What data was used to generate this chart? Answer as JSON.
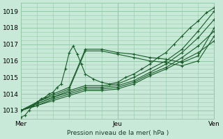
{
  "title": "",
  "xlabel": "Pression niveau de la mer( hPa )",
  "bg_color": "#c8e8d8",
  "grid_color": "#96c8aa",
  "line_color": "#1a5c2a",
  "xlim": [
    0,
    48
  ],
  "ylim": [
    1012.5,
    1019.5
  ],
  "yticks": [
    1013,
    1014,
    1015,
    1016,
    1017,
    1018,
    1019
  ],
  "xtick_labels": [
    "Mer",
    "Jeu",
    "Ven"
  ],
  "xtick_positions": [
    0,
    24,
    48
  ],
  "series": [
    {
      "x": [
        0,
        1,
        2,
        3,
        4,
        5,
        6,
        7,
        8,
        9,
        10,
        11,
        12,
        13,
        14,
        15,
        16,
        18,
        20,
        22,
        24,
        26,
        28,
        30,
        32,
        34,
        36,
        38,
        40,
        42,
        44,
        46,
        48
      ],
      "y": [
        1012.6,
        1012.7,
        1013.0,
        1013.3,
        1013.5,
        1013.7,
        1013.8,
        1014.0,
        1014.1,
        1014.4,
        1014.6,
        1015.5,
        1016.5,
        1016.9,
        1016.4,
        1015.8,
        1015.2,
        1014.9,
        1014.7,
        1014.6,
        1014.7,
        1015.0,
        1015.2,
        1015.5,
        1015.8,
        1016.2,
        1016.5,
        1017.0,
        1017.5,
        1018.0,
        1018.4,
        1018.9,
        1019.2
      ],
      "marker": true
    },
    {
      "x": [
        0,
        4,
        8,
        12,
        16,
        20,
        24,
        28,
        32,
        36,
        40,
        44,
        48
      ],
      "y": [
        1013.0,
        1013.5,
        1014.0,
        1014.4,
        1016.7,
        1016.7,
        1016.5,
        1016.4,
        1016.2,
        1016.1,
        1015.9,
        1016.3,
        1018.0
      ],
      "marker": true
    },
    {
      "x": [
        0,
        4,
        8,
        12,
        16,
        20,
        24,
        28,
        32,
        36,
        40,
        44,
        48
      ],
      "y": [
        1013.0,
        1013.5,
        1013.9,
        1014.3,
        1016.6,
        1016.6,
        1016.4,
        1016.2,
        1016.0,
        1015.9,
        1015.7,
        1016.0,
        1017.5
      ],
      "marker": true
    },
    {
      "x": [
        0,
        4,
        8,
        12,
        16,
        20,
        24,
        28,
        32,
        36,
        40,
        44,
        48
      ],
      "y": [
        1013.0,
        1013.4,
        1013.8,
        1014.2,
        1014.5,
        1014.5,
        1014.6,
        1015.0,
        1015.5,
        1016.0,
        1016.7,
        1017.8,
        1019.0
      ],
      "marker": true
    },
    {
      "x": [
        0,
        4,
        8,
        12,
        16,
        20,
        24,
        28,
        32,
        36,
        40,
        44,
        48
      ],
      "y": [
        1013.0,
        1013.4,
        1013.8,
        1014.1,
        1014.4,
        1014.4,
        1014.5,
        1014.8,
        1015.3,
        1015.8,
        1016.5,
        1017.4,
        1018.5
      ],
      "marker": true
    },
    {
      "x": [
        0,
        4,
        8,
        12,
        16,
        20,
        24,
        28,
        32,
        36,
        40,
        44,
        48
      ],
      "y": [
        1013.0,
        1013.3,
        1013.7,
        1014.0,
        1014.3,
        1014.3,
        1014.4,
        1014.7,
        1015.2,
        1015.6,
        1016.2,
        1016.9,
        1017.8
      ],
      "marker": true
    },
    {
      "x": [
        0,
        4,
        8,
        12,
        16,
        20,
        24,
        28,
        32,
        36,
        40,
        44,
        48
      ],
      "y": [
        1013.0,
        1013.3,
        1013.6,
        1013.9,
        1014.2,
        1014.2,
        1014.3,
        1014.6,
        1015.1,
        1015.5,
        1016.0,
        1016.5,
        1017.2
      ],
      "marker": true
    }
  ]
}
